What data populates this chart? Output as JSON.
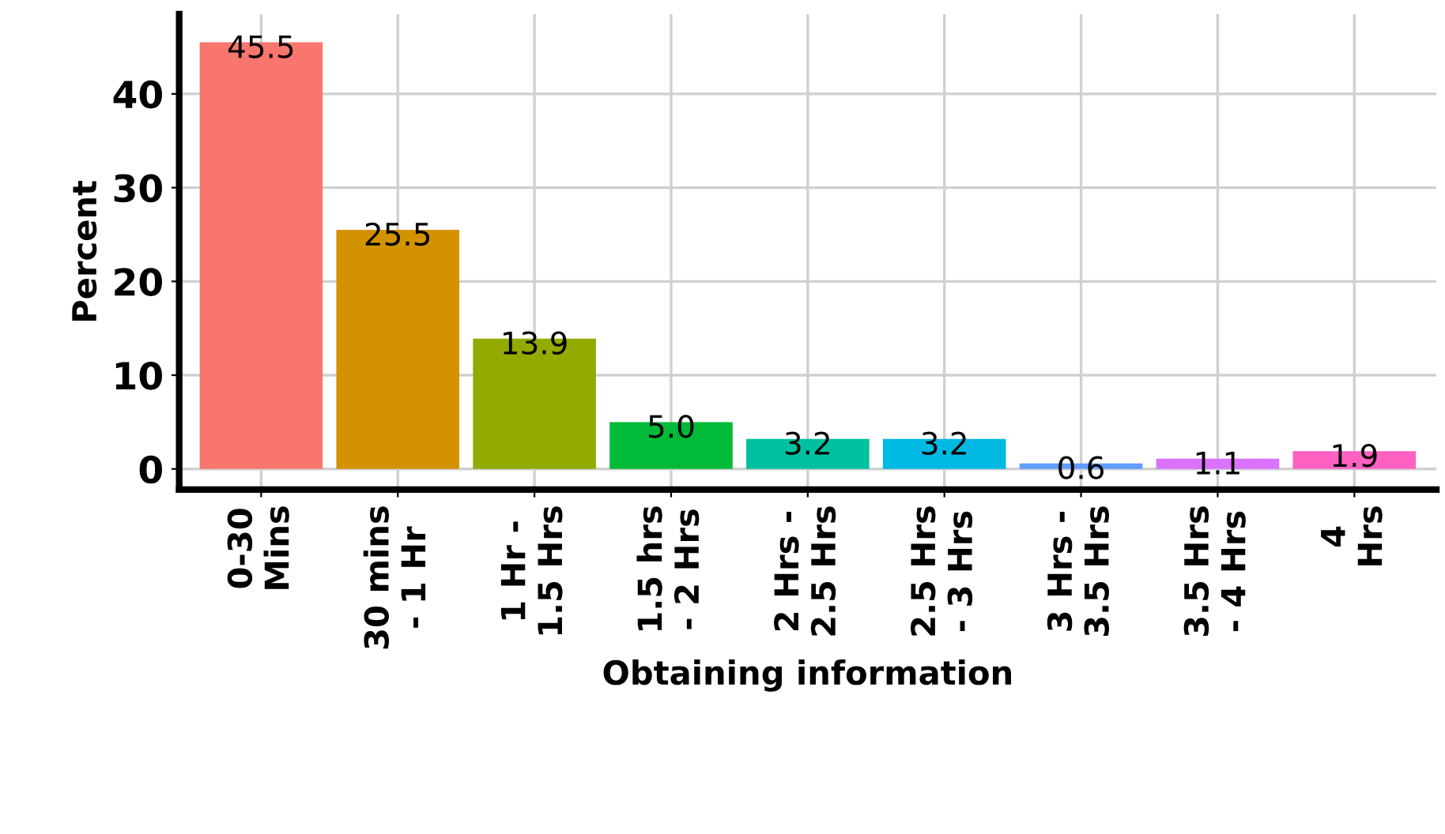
{
  "chart_data": {
    "type": "bar",
    "xlabel": "Obtaining information",
    "ylabel": "Percent",
    "categories": [
      "0-30 Mins",
      "30 mins - 1 Hr",
      "1 Hr - 1.5 Hrs",
      "1.5 hrs - 2 Hrs",
      "2 Hrs - 2.5 Hrs",
      "2.5 Hrs - 3 Hrs",
      "3 Hrs - 3.5 Hrs",
      "3.5 Hrs - 4 Hrs",
      "4 Hrs"
    ],
    "values": [
      45.5,
      25.5,
      13.9,
      5.0,
      3.2,
      3.2,
      0.6,
      1.1,
      1.9
    ],
    "colors": [
      "#F8766D",
      "#D39200",
      "#93AA00",
      "#00BA38",
      "#00C19F",
      "#00B9E3",
      "#619CFF",
      "#DB72FB",
      "#FF61C3"
    ],
    "value_labels": [
      "45.5",
      "25.5",
      "13.9",
      "5.0",
      "3.2",
      "3.2",
      "0.6",
      "1.1",
      "1.9"
    ],
    "ylim": [
      -2.2,
      48.5
    ],
    "yticks": [
      0,
      10,
      20,
      30,
      40
    ],
    "grid": true
  }
}
